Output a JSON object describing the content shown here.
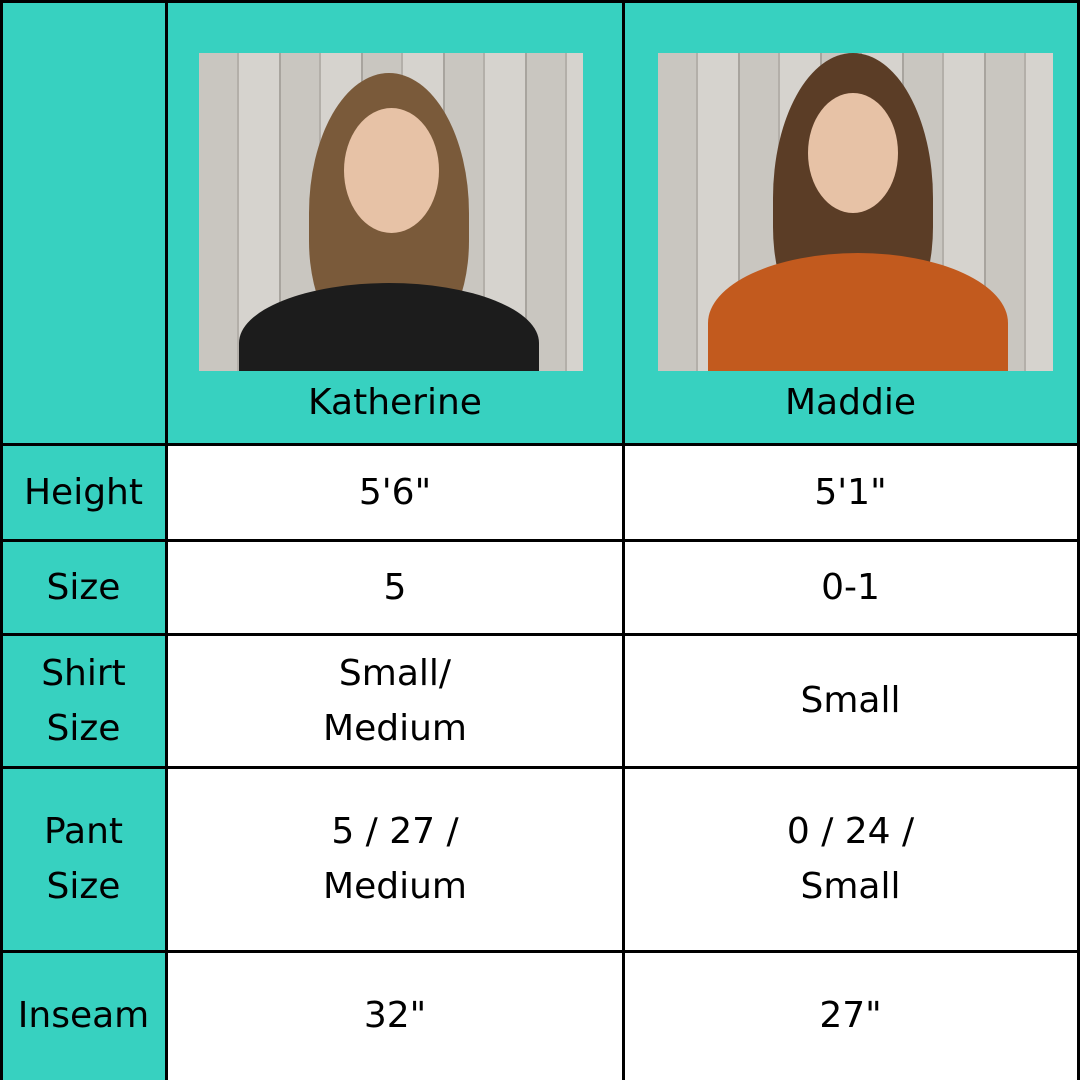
{
  "colors": {
    "header_bg": "#37d1c0",
    "cell_bg": "#ffffff",
    "border": "#000000"
  },
  "models": [
    {
      "name": "Katherine",
      "photo_icon": "model-photo"
    },
    {
      "name": "Maddie",
      "photo_icon": "model-photo"
    }
  ],
  "rows": [
    {
      "label": "Height",
      "values": [
        "5'6\"",
        "5'1\""
      ]
    },
    {
      "label": "Size",
      "values": [
        "5",
        "0-1"
      ]
    },
    {
      "label": "Shirt\nSize",
      "values": [
        "Small/\nMedium",
        "Small"
      ]
    },
    {
      "label": "Pant\nSize",
      "values": [
        "5 / 27 /\nMedium",
        "0 / 24 /\nSmall"
      ]
    },
    {
      "label": "Inseam",
      "values": [
        "32\"",
        "27\""
      ]
    }
  ]
}
